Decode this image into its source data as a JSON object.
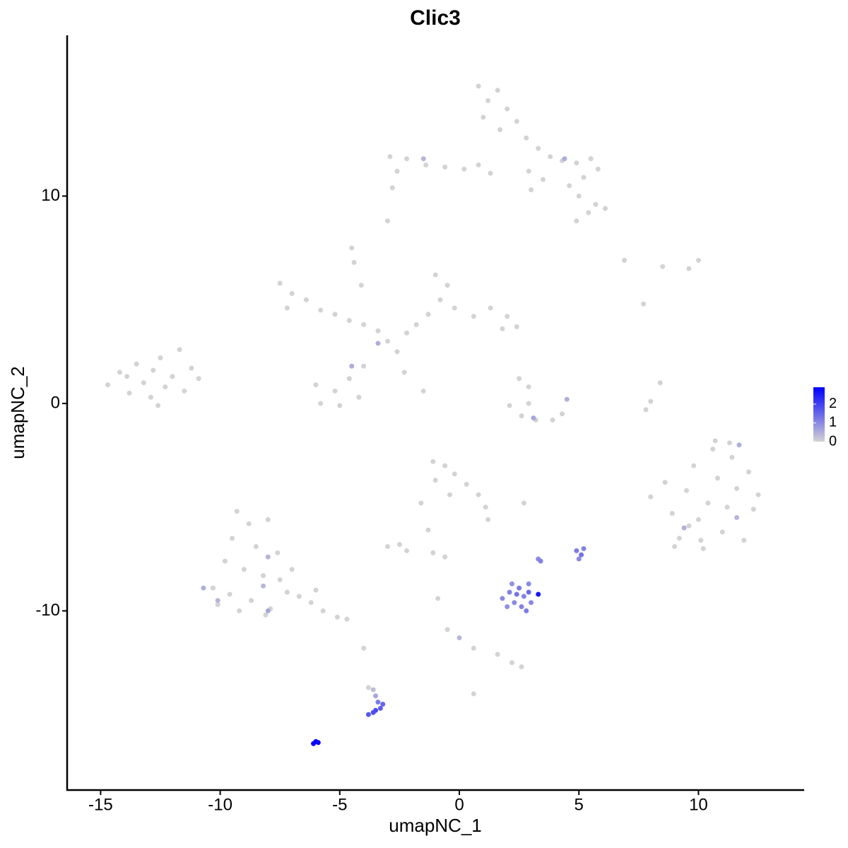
{
  "chart_data": {
    "type": "scatter",
    "title": "Clic3",
    "xlabel": "umapNC_1",
    "ylabel": "umapNC_2",
    "xlim": [
      -16.4,
      14.42
    ],
    "ylim": [
      -18.64,
      17.75
    ],
    "xticks": [
      -15,
      -10,
      -5,
      0,
      5,
      10
    ],
    "yticks": [
      -10,
      0,
      10
    ],
    "colorbar": {
      "colors": [
        "#d3d3d3",
        "#0000ff"
      ],
      "lim": [
        0,
        2.9
      ],
      "ticks": [
        0,
        1,
        2
      ]
    },
    "x": [
      -14.7,
      -14.2,
      -13.8,
      -13.5,
      -13.2,
      -12.9,
      -12.8,
      -12.5,
      -12.3,
      -12.0,
      -11.7,
      -11.5,
      -11.2,
      -10.9,
      -13.9,
      -12.6,
      0.8,
      1.2,
      1.6,
      2.0,
      1.0,
      2.4,
      1.7,
      2.8,
      3.3,
      3.8,
      4.3,
      4.9,
      5.5,
      5.8,
      5.2,
      4.6,
      5.0,
      5.7,
      6.1,
      5.4,
      4.9,
      3.5,
      2.9,
      1.3,
      0.8,
      0.2,
      -0.6,
      -1.4,
      -2.2,
      -2.9,
      -2.6,
      -2.8,
      -3.0,
      3.0,
      -1.5,
      4.4,
      -7.5,
      -7.0,
      -6.4,
      -7.2,
      -5.8,
      -5.2,
      -4.6,
      -4.0,
      -3.4,
      -3.0,
      -2.6,
      -2.2,
      -1.8,
      -1.3,
      -0.8,
      -0.5,
      -1.0,
      -0.2,
      0.6,
      1.3,
      2.0,
      2.4,
      1.8,
      -4.0,
      -4.6,
      -5.2,
      -5.8,
      -6.0,
      -5.0,
      -4.2,
      -4.5,
      -4.4,
      -4.1,
      -2.3,
      -1.5,
      -3.4,
      -4.5,
      2.5,
      2.9,
      2.1,
      2.6,
      3.2,
      3.9,
      4.3,
      2.9,
      3.1,
      4.5,
      7.7,
      8.4,
      8.0,
      7.8,
      9.6,
      10.0,
      6.9,
      8.5,
      8.0,
      8.6,
      8.9,
      9.2,
      9.5,
      9.8,
      10.0,
      10.2,
      10.4,
      10.6,
      10.8,
      11.0,
      11.2,
      11.4,
      11.6,
      11.9,
      12.1,
      12.3,
      12.5,
      10.1,
      9.0,
      11.3,
      9.6,
      10.7,
      11.7,
      9.4,
      11.6,
      -9.3,
      -8.8,
      -8.0,
      -9.5,
      -8.5,
      -7.6,
      -9.8,
      -9.0,
      -8.2,
      -7.5,
      -10.3,
      -9.6,
      -8.7,
      -7.9,
      -7.2,
      -6.7,
      -6.2,
      -5.7,
      -5.1,
      -4.7,
      -10.1,
      -9.2,
      -8.1,
      -7.0,
      -6.0,
      -10.7,
      -10.1,
      -8.0,
      -8.0,
      -8.2,
      -1.1,
      -0.6,
      -0.2,
      -1.0,
      0.3,
      0.8,
      1.1,
      1.2,
      -0.4,
      -1.6,
      -1.3,
      -2.5,
      -3.0,
      -2.2,
      -1.1,
      -0.6,
      -0.9,
      -0.5,
      0.6,
      1.6,
      2.2,
      2.6,
      0.6,
      -3.8,
      -4.0,
      2.7,
      0.0,
      1.8,
      2.1,
      2.3,
      2.5,
      2.7,
      2.9,
      2.0,
      2.6,
      3.0,
      2.8,
      2.2,
      2.4,
      3.3,
      2.9,
      3.3,
      3.4,
      4.9,
      5.1,
      5.0,
      5.2,
      -3.6,
      -3.5,
      -3.4,
      -3.3,
      -3.6,
      -3.8,
      -3.5,
      -3.2,
      -6.1,
      -6.0,
      -5.9
    ],
    "y": [
      0.9,
      1.5,
      0.5,
      1.9,
      1.0,
      0.3,
      1.6,
      2.2,
      0.8,
      1.3,
      2.6,
      0.6,
      1.7,
      1.2,
      1.3,
      -0.1,
      15.3,
      14.6,
      15.1,
      14.2,
      13.8,
      13.6,
      13.2,
      12.8,
      12.3,
      11.9,
      11.7,
      11.6,
      11.8,
      11.3,
      10.9,
      10.5,
      10.0,
      9.6,
      9.4,
      9.2,
      8.8,
      10.8,
      11.2,
      11.1,
      11.5,
      11.3,
      11.4,
      11.5,
      11.8,
      11.9,
      11.2,
      10.4,
      8.8,
      10.3,
      11.8,
      11.8,
      5.8,
      5.3,
      5.0,
      4.6,
      4.5,
      4.3,
      4.0,
      3.8,
      3.5,
      3.0,
      2.5,
      3.4,
      3.8,
      4.3,
      5.0,
      5.7,
      6.2,
      4.6,
      4.2,
      4.6,
      4.2,
      3.7,
      3.6,
      1.8,
      1.2,
      0.6,
      0.0,
      0.9,
      -0.1,
      0.3,
      7.5,
      6.8,
      5.7,
      1.5,
      0.6,
      2.9,
      1.8,
      1.2,
      0.8,
      -0.1,
      -0.6,
      -0.8,
      -0.8,
      -0.5,
      0.0,
      -0.7,
      0.2,
      4.8,
      1.0,
      0.1,
      -0.3,
      6.5,
      6.9,
      6.9,
      6.6,
      -4.5,
      -3.8,
      -5.3,
      -6.5,
      -4.2,
      -3.0,
      -5.6,
      -7.0,
      -4.8,
      -2.2,
      -3.6,
      -6.2,
      -5.0,
      -2.6,
      -4.1,
      -6.6,
      -3.3,
      -5.1,
      -4.4,
      -6.6,
      -6.9,
      -1.9,
      -5.9,
      -1.8,
      -2.0,
      -6.0,
      -5.5,
      -5.2,
      -5.8,
      -5.6,
      -6.5,
      -6.9,
      -7.2,
      -7.6,
      -8.0,
      -8.3,
      -8.5,
      -8.9,
      -9.2,
      -9.5,
      -9.9,
      -9.1,
      -9.3,
      -9.6,
      -10.0,
      -10.3,
      -10.4,
      -9.7,
      -10.0,
      -10.2,
      -8.0,
      -9.0,
      -8.9,
      -9.5,
      -10.0,
      -7.4,
      -8.8,
      -2.8,
      -3.0,
      -3.4,
      -3.7,
      -3.9,
      -4.4,
      -5.0,
      -5.6,
      -4.4,
      -4.8,
      -6.1,
      -6.8,
      -6.9,
      -7.1,
      -7.2,
      -7.4,
      -9.4,
      -10.9,
      -11.8,
      -12.1,
      -12.5,
      -12.7,
      -14.0,
      -13.7,
      -11.8,
      -4.8,
      -11.3,
      -9.4,
      -9.1,
      -9.6,
      -8.9,
      -9.3,
      -8.7,
      -9.8,
      -9.8,
      -9.6,
      -10.0,
      -8.7,
      -9.2,
      -9.2,
      -9.1,
      -7.5,
      -7.6,
      -7.1,
      -7.3,
      -7.5,
      -7.0,
      -13.8,
      -14.1,
      -14.4,
      -14.7,
      -14.9,
      -15.0,
      -14.8,
      -14.5,
      -16.4,
      -16.3,
      -16.35
    ],
    "values": [
      0,
      0,
      0,
      0,
      0,
      0,
      0,
      0,
      0,
      0,
      0,
      0,
      0,
      0,
      0,
      0,
      0,
      0,
      0,
      0,
      0,
      0,
      0,
      0,
      0,
      0,
      0,
      0,
      0,
      0,
      0,
      0,
      0,
      0,
      0,
      0,
      0,
      0,
      0,
      0,
      0,
      0,
      0,
      0,
      0,
      0,
      0,
      0,
      0,
      0,
      0.4,
      0.5,
      0,
      0,
      0,
      0,
      0,
      0,
      0,
      0,
      0,
      0,
      0,
      0,
      0,
      0,
      0,
      0,
      0,
      0,
      0,
      0,
      0,
      0,
      0,
      0,
      0,
      0,
      0,
      0,
      0,
      0,
      0,
      0,
      0,
      0,
      0,
      0.5,
      0.5,
      0,
      0,
      0,
      0,
      0,
      0,
      0,
      0,
      0.6,
      0.5,
      0,
      0,
      0,
      0,
      0,
      0,
      0,
      0,
      0,
      0,
      0,
      0,
      0,
      0,
      0,
      0,
      0,
      0,
      0,
      0,
      0,
      0,
      0,
      0,
      0,
      0,
      0,
      0,
      0,
      0,
      0,
      0,
      0.5,
      0.5,
      0.4,
      0,
      0,
      0,
      0,
      0,
      0,
      0,
      0,
      0,
      0,
      0,
      0,
      0,
      0,
      0,
      0,
      0,
      0,
      0,
      0,
      0,
      0,
      0,
      0,
      0,
      0.5,
      0.4,
      0.6,
      0.4,
      0.4,
      0,
      0,
      0,
      0,
      0,
      0,
      0,
      0,
      0,
      0,
      0,
      0,
      0,
      0,
      0,
      0,
      0,
      0,
      0,
      0,
      0,
      0,
      0,
      0,
      0,
      0,
      0.4,
      1.0,
      1.1,
      1.0,
      1.2,
      1.1,
      1.0,
      0.9,
      1.1,
      1.0,
      1.2,
      0.9,
      1.3,
      2.6,
      1.4,
      1.0,
      1.1,
      1.2,
      1.3,
      1.0,
      1.1,
      0.3,
      0.6,
      1.2,
      1.6,
      1.8,
      1.7,
      1.9,
      1.5,
      2.9,
      2.9,
      2.8
    ]
  }
}
